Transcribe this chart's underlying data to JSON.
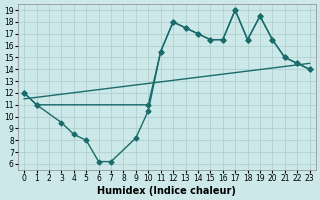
{
  "line1_x": [
    0,
    1,
    3,
    4,
    5,
    6,
    7,
    9,
    10,
    11,
    12,
    13,
    14,
    15,
    16,
    17,
    18,
    19,
    20,
    21,
    22,
    23
  ],
  "line1_y": [
    12,
    11,
    9.5,
    8.5,
    8.0,
    6.2,
    6.2,
    8.2,
    10.5,
    15.5,
    18,
    17.5,
    17,
    16.5,
    16.5,
    19,
    16.5,
    18.5,
    16.5,
    15,
    14.5,
    14
  ],
  "line2_x": [
    0,
    1,
    10,
    11,
    12,
    13,
    14,
    15,
    16,
    17,
    18,
    19,
    20,
    21,
    22,
    23
  ],
  "line2_y": [
    12,
    11,
    11,
    15.5,
    18,
    17.5,
    17,
    16.5,
    16.5,
    19,
    16.5,
    18.5,
    16.5,
    15,
    14.5,
    14
  ],
  "line3_x": [
    0,
    23
  ],
  "line3_y": [
    11.5,
    14.5
  ],
  "bg_color": "#cce8e8",
  "grid_color": "#aacccc",
  "line_color": "#1a6b6b",
  "xlabel": "Humidex (Indice chaleur)",
  "xlim": [
    -0.5,
    23.5
  ],
  "ylim": [
    5.5,
    19.5
  ],
  "xticks": [
    0,
    1,
    2,
    3,
    4,
    5,
    6,
    7,
    8,
    9,
    10,
    11,
    12,
    13,
    14,
    15,
    16,
    17,
    18,
    19,
    20,
    21,
    22,
    23
  ],
  "yticks": [
    6,
    7,
    8,
    9,
    10,
    11,
    12,
    13,
    14,
    15,
    16,
    17,
    18,
    19
  ],
  "marker": "D",
  "markersize": 2.5,
  "linewidth": 1.0,
  "xlabel_fontsize": 7,
  "tick_fontsize": 5.5
}
